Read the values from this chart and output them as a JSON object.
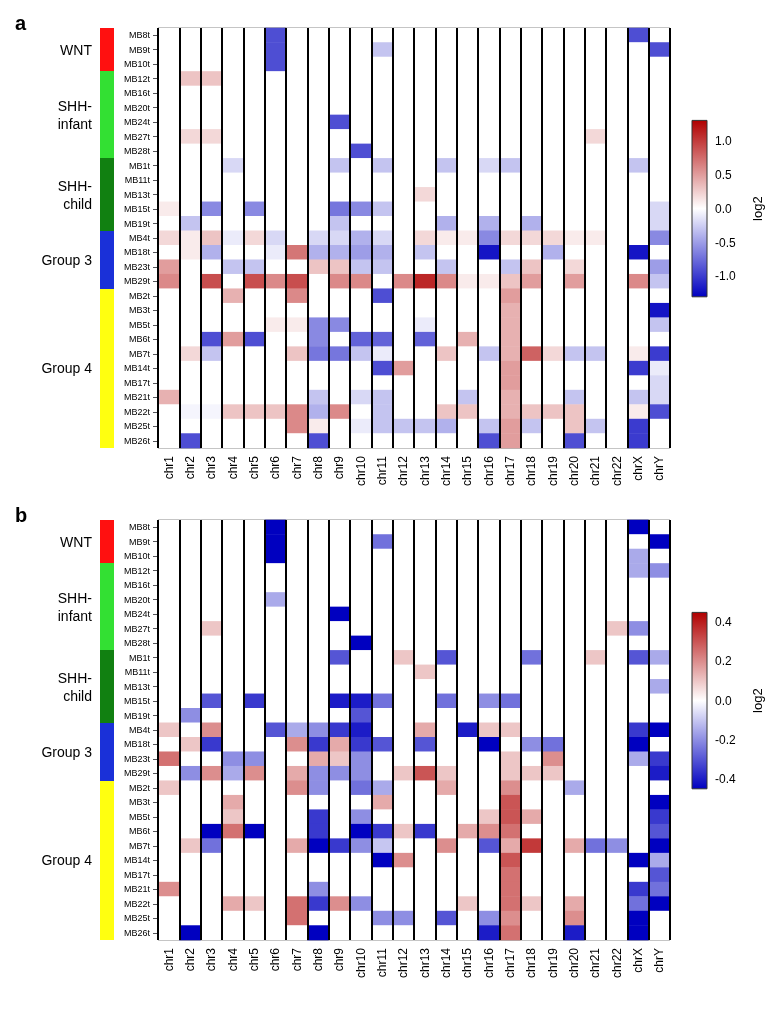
{
  "chart_data": [
    {
      "type": "heatmap",
      "title": "a",
      "clabel": "log2",
      "categories": [
        "chr1",
        "chr2",
        "chr3",
        "chr4",
        "chr5",
        "chr6",
        "chr7",
        "chr8",
        "chr9",
        "chr10",
        "chr11",
        "chr12",
        "chr13",
        "chr14",
        "chr15",
        "chr16",
        "chr17",
        "chr18",
        "chr19",
        "chr20",
        "chr21",
        "chr22",
        "chrX",
        "chrY"
      ],
      "y_categories": [
        "MB8t",
        "MB9t",
        "MB10t",
        "MB12t",
        "MB16t",
        "MB20t",
        "MB24t",
        "MB27t",
        "MB28t",
        "MB1t",
        "MB11t",
        "MB13t",
        "MB15t",
        "MB19t",
        "MB4t",
        "MB18t",
        "MB23t",
        "MB29t",
        "MB2t",
        "MB3t",
        "MB5t",
        "MB6t",
        "MB7t",
        "MB14t",
        "MB17t",
        "MB21t",
        "MB22t",
        "MB25t",
        "MB26t"
      ],
      "cells": [
        [
          0,
          0,
          0,
          0,
          0,
          -0.9,
          0,
          0,
          0,
          0,
          0,
          0,
          0,
          0,
          0,
          0,
          0,
          0,
          0,
          0,
          0,
          0,
          -0.9,
          0
        ],
        [
          0,
          0,
          0,
          0,
          0,
          -0.9,
          0,
          0,
          0,
          0,
          -0.3,
          0,
          0,
          0,
          0,
          0,
          0,
          0,
          0,
          0,
          0,
          0,
          0,
          -0.9
        ],
        [
          0,
          0,
          0,
          0,
          0,
          -0.9,
          0,
          0,
          0,
          0,
          0,
          0,
          0,
          0,
          0,
          0,
          0,
          0,
          0,
          0,
          0,
          0,
          0,
          0
        ],
        [
          0,
          0.3,
          0.3,
          0,
          0,
          0,
          0,
          0,
          0,
          0,
          0,
          0,
          0,
          0,
          0,
          0,
          0,
          0,
          0,
          0,
          0,
          0,
          0,
          0
        ],
        [
          0,
          0,
          0,
          0,
          0,
          0,
          0,
          0,
          0,
          0,
          0,
          0,
          0,
          0,
          0,
          0,
          0,
          0,
          0,
          0,
          0,
          0,
          0,
          0
        ],
        [
          0,
          0,
          0,
          0,
          0,
          0,
          0,
          0,
          0,
          0,
          0,
          0,
          0,
          0,
          0,
          0,
          0,
          0,
          0,
          0,
          0,
          0,
          0,
          0
        ],
        [
          0,
          0,
          0,
          0,
          0,
          0,
          0,
          0,
          -0.9,
          0,
          0,
          0,
          0,
          0,
          0,
          0,
          0,
          0,
          0,
          0,
          0,
          0,
          0,
          0
        ],
        [
          0,
          0.2,
          0.2,
          0,
          0,
          0,
          0,
          0,
          0,
          0,
          0,
          0,
          0,
          0,
          0,
          0,
          0,
          0,
          0,
          0,
          0.2,
          0,
          0,
          0
        ],
        [
          0,
          0,
          0,
          0,
          0,
          0,
          0,
          0,
          0,
          -0.9,
          0,
          0,
          0,
          0,
          0,
          0,
          0,
          0,
          0,
          0,
          0,
          0,
          0,
          0
        ],
        [
          0,
          0,
          0,
          -0.2,
          0,
          0,
          0,
          0,
          -0.3,
          0,
          -0.3,
          0,
          0,
          -0.3,
          0,
          -0.2,
          -0.3,
          0,
          0,
          0,
          0,
          0,
          -0.3,
          0
        ],
        [
          0,
          0,
          0,
          0,
          0,
          0,
          0,
          0,
          0,
          0,
          0,
          0,
          0,
          0,
          0,
          0,
          0,
          0,
          0,
          0,
          0,
          0,
          0,
          0
        ],
        [
          0,
          0,
          0,
          0,
          0,
          0,
          0,
          0,
          0,
          0,
          0,
          0,
          0.2,
          0,
          0,
          0,
          0,
          0,
          0,
          0,
          0,
          0,
          0,
          0
        ],
        [
          0.1,
          0,
          -0.6,
          0,
          -0.6,
          0,
          0,
          0,
          -0.7,
          -0.6,
          -0.3,
          0,
          0,
          0,
          0,
          0,
          0,
          0,
          0,
          0,
          0,
          0,
          0,
          -0.2
        ],
        [
          0,
          -0.3,
          0,
          0,
          0,
          0,
          0,
          0,
          -0.3,
          0,
          0,
          0,
          0,
          -0.4,
          0,
          -0.4,
          0,
          -0.4,
          0,
          0,
          0,
          0,
          0,
          -0.2
        ],
        [
          0.2,
          0.1,
          0.3,
          -0.1,
          0.2,
          -0.2,
          0,
          -0.2,
          -0.2,
          -0.4,
          -0.2,
          0,
          0.2,
          0.1,
          0.1,
          -0.6,
          0.2,
          0.2,
          0.2,
          0.1,
          0.1,
          0,
          0,
          -0.6
        ],
        [
          0,
          0.1,
          -0.4,
          0,
          0,
          -0.1,
          0.7,
          -0.4,
          -0.4,
          -0.5,
          -0.4,
          0,
          -0.3,
          0,
          0,
          -1.2,
          0,
          0,
          -0.4,
          0,
          0,
          0,
          -1.2,
          0
        ],
        [
          0.5,
          0,
          0,
          -0.3,
          -0.3,
          0,
          0,
          0.3,
          0.3,
          -0.3,
          -0.3,
          0,
          0,
          -0.3,
          0,
          0,
          -0.3,
          0.3,
          0,
          0.2,
          0,
          0,
          0,
          -0.5
        ],
        [
          0.6,
          0,
          0.9,
          0,
          0.9,
          0.6,
          0.9,
          0,
          0.6,
          0.6,
          0,
          0.6,
          1.1,
          0.6,
          0.1,
          0.1,
          0.3,
          0.5,
          0,
          0.5,
          0,
          0,
          0.6,
          -0.3
        ],
        [
          0,
          0,
          0,
          0.4,
          0,
          0,
          0.6,
          0,
          0,
          0,
          -0.9,
          0,
          0,
          0,
          0,
          0,
          0.5,
          0,
          0,
          0,
          0,
          0,
          0,
          0
        ],
        [
          0,
          0,
          0,
          0,
          0,
          0,
          0,
          0,
          0,
          0,
          0,
          0,
          0,
          0,
          0,
          0,
          0.4,
          0,
          0,
          0,
          0,
          0,
          0,
          -1.2
        ],
        [
          0,
          0,
          0,
          0,
          0,
          0.1,
          0.1,
          -0.6,
          -0.6,
          0,
          0,
          0,
          -0.1,
          0,
          0,
          0,
          0.4,
          0,
          0,
          0,
          0,
          0,
          0,
          -0.3
        ],
        [
          0,
          0,
          -0.9,
          0.5,
          -0.9,
          0,
          0,
          -0.6,
          0,
          -0.8,
          -0.8,
          0,
          -0.8,
          0,
          0.4,
          0,
          0.4,
          0,
          0,
          0,
          0,
          0,
          0,
          0
        ],
        [
          0,
          0.2,
          -0.3,
          0,
          0,
          0,
          0.3,
          -0.7,
          -0.7,
          -0.3,
          -0.1,
          0,
          0,
          0.3,
          0,
          -0.3,
          0.4,
          0.8,
          0.2,
          -0.3,
          -0.3,
          0,
          0.1,
          -1.0
        ],
        [
          0,
          0,
          0,
          0,
          0,
          0,
          0,
          0,
          0,
          0,
          -0.9,
          0.5,
          0,
          0,
          0,
          0,
          0.5,
          0,
          0,
          0,
          0,
          0,
          -1.0,
          -0.1
        ],
        [
          0,
          0,
          0,
          0,
          0,
          0,
          0,
          0,
          0,
          0,
          0,
          0,
          0,
          0,
          0,
          0,
          0.5,
          0,
          0,
          0,
          0,
          0,
          0,
          -0.2
        ],
        [
          0.4,
          0,
          0,
          0,
          0,
          0,
          0,
          -0.3,
          0,
          -0.2,
          -0.3,
          0,
          0,
          0,
          -0.3,
          0,
          0.4,
          0,
          0,
          -0.3,
          0,
          0,
          -0.3,
          -0.2
        ],
        [
          0,
          -0.05,
          -0.05,
          0.3,
          0.3,
          0.3,
          0.6,
          -0.4,
          0.6,
          0,
          -0.3,
          0,
          0,
          0.3,
          0.3,
          0,
          0.4,
          0.3,
          0.3,
          0.3,
          0,
          0,
          0.1,
          -0.9
        ],
        [
          0,
          0,
          0,
          0,
          0,
          0,
          0.6,
          0.1,
          0,
          -0.1,
          -0.3,
          -0.3,
          -0.3,
          -0.4,
          0,
          -0.3,
          0.5,
          -0.3,
          0,
          0.3,
          -0.3,
          0,
          -1.0,
          0
        ],
        [
          0,
          -0.9,
          0,
          0,
          0,
          0,
          0,
          -0.9,
          0,
          0,
          0,
          0,
          0,
          0,
          0,
          -0.9,
          0.5,
          0,
          0,
          -0.9,
          0,
          0,
          -1.0,
          0
        ]
      ],
      "clim": [
        -1.3,
        1.3
      ],
      "cticks": [
        {
          "value": -1.0,
          "label": "-1.0"
        },
        {
          "value": -0.5,
          "label": "-0.5"
        },
        {
          "value": 0.0,
          "label": "0.0"
        },
        {
          "value": 0.5,
          "label": "0.5"
        },
        {
          "value": 1.0,
          "label": "1.0"
        }
      ],
      "annotations": [
        "WNT",
        "SHH-infant",
        "SHH-child",
        "Group 3",
        "Group 4"
      ]
    },
    {
      "type": "heatmap",
      "title": "b",
      "clabel": "log2",
      "categories": [
        "chr1",
        "chr2",
        "chr3",
        "chr4",
        "chr5",
        "chr6",
        "chr7",
        "chr8",
        "chr9",
        "chr10",
        "chr11",
        "chr12",
        "chr13",
        "chr14",
        "chr15",
        "chr16",
        "chr17",
        "chr18",
        "chr19",
        "chr20",
        "chr21",
        "chr22",
        "chrX",
        "chrY"
      ],
      "y_categories": [
        "MB8t",
        "MB9t",
        "MB10t",
        "MB12t",
        "MB16t",
        "MB20t",
        "MB24t",
        "MB27t",
        "MB28t",
        "MB1t",
        "MB11t",
        "MB13t",
        "MB15t",
        "MB19t",
        "MB4t",
        "MB18t",
        "MB23t",
        "MB29t",
        "MB2t",
        "MB3t",
        "MB5t",
        "MB6t",
        "MB7t",
        "MB14t",
        "MB17t",
        "MB21t",
        "MB22t",
        "MB25t",
        "MB26t"
      ],
      "cells": [
        [
          0,
          0,
          0,
          0,
          0,
          -0.45,
          0,
          0,
          0,
          0,
          0,
          0,
          0,
          0,
          0,
          0,
          0,
          0,
          0,
          0,
          0,
          0,
          -0.45,
          0
        ],
        [
          0,
          0,
          0,
          0,
          0,
          -0.45,
          0,
          0,
          0,
          0,
          -0.25,
          0,
          0,
          0,
          0,
          0,
          0,
          0,
          0,
          0,
          0,
          0,
          0,
          -0.45
        ],
        [
          0,
          0,
          0,
          0,
          0,
          -0.45,
          0,
          0,
          0,
          0,
          0,
          0,
          0,
          0,
          0,
          0,
          0,
          0,
          0,
          0,
          0,
          0,
          -0.15,
          0
        ],
        [
          0,
          0,
          0,
          0,
          0,
          0,
          0,
          0,
          0,
          0,
          0,
          0,
          0,
          0,
          0,
          0,
          0,
          0,
          0,
          0,
          0,
          0,
          -0.15,
          -0.2
        ],
        [
          0,
          0,
          0,
          0,
          0,
          0,
          0,
          0,
          0,
          0,
          0,
          0,
          0,
          0,
          0,
          0,
          0,
          0,
          0,
          0,
          0,
          0,
          0,
          0
        ],
        [
          0,
          0,
          0,
          0,
          0,
          -0.15,
          0,
          0,
          0,
          0,
          0,
          0,
          0,
          0,
          0,
          0,
          0,
          0,
          0,
          0,
          0,
          0,
          0,
          0
        ],
        [
          0,
          0,
          0,
          0,
          0,
          0,
          0,
          0,
          -0.45,
          0,
          0,
          0,
          0,
          0,
          0,
          0,
          0,
          0,
          0,
          0,
          0,
          0,
          0,
          0
        ],
        [
          0,
          0,
          0.1,
          0,
          0,
          0,
          0,
          0,
          0,
          0,
          0,
          0,
          0,
          0,
          0,
          0,
          0,
          0,
          0,
          0,
          0,
          0.1,
          -0.2,
          0
        ],
        [
          0,
          0,
          0,
          0,
          0,
          0,
          0,
          0,
          0,
          -0.45,
          0,
          0,
          0,
          0,
          0,
          0,
          0,
          0,
          0,
          0,
          0,
          0,
          0,
          0
        ],
        [
          0,
          0,
          0,
          0,
          0,
          0,
          0,
          0,
          -0.3,
          0,
          0,
          0.1,
          0,
          -0.3,
          0,
          0,
          0,
          -0.25,
          0,
          0,
          0.1,
          0,
          -0.3,
          -0.15
        ],
        [
          0,
          0,
          0,
          0,
          0,
          0,
          0,
          0,
          0,
          0,
          0,
          0,
          0.1,
          0,
          0,
          0,
          0,
          0,
          0,
          0,
          0,
          0,
          0,
          0
        ],
        [
          0,
          0,
          0,
          0,
          0,
          0,
          0,
          0,
          0,
          0,
          0,
          0,
          0,
          0,
          0,
          0,
          0,
          0,
          0,
          0,
          0,
          0,
          0,
          -0.15
        ],
        [
          0,
          0,
          -0.3,
          0,
          -0.35,
          0,
          0,
          0,
          -0.4,
          -0.4,
          -0.25,
          0,
          0,
          -0.25,
          0,
          -0.2,
          -0.25,
          0,
          0,
          0,
          0,
          0,
          0,
          0
        ],
        [
          0,
          -0.2,
          0,
          0,
          0,
          0,
          0,
          0,
          0,
          -0.3,
          0,
          0,
          0,
          0,
          0,
          0,
          0,
          0,
          0,
          0,
          0,
          0,
          0,
          0
        ],
        [
          0.1,
          0,
          0.2,
          0,
          0,
          -0.3,
          -0.15,
          -0.2,
          -0.35,
          -0.4,
          0,
          0,
          0.15,
          0,
          -0.4,
          0.1,
          0.1,
          0,
          0,
          0,
          0,
          0,
          -0.35,
          -0.45
        ],
        [
          0,
          0.1,
          -0.35,
          0,
          0,
          0,
          0.2,
          -0.35,
          0.15,
          -0.35,
          -0.3,
          0,
          -0.3,
          0,
          0,
          -0.45,
          0,
          -0.2,
          -0.25,
          0,
          0,
          0,
          -0.45,
          0
        ],
        [
          0.25,
          0,
          0,
          -0.2,
          -0.2,
          0,
          0,
          0.15,
          0.1,
          -0.2,
          0,
          0,
          0,
          0,
          0,
          0,
          0.1,
          0,
          0.2,
          0,
          0,
          0,
          -0.15,
          -0.35
        ],
        [
          0,
          -0.2,
          0.2,
          -0.15,
          0.2,
          0,
          0.15,
          -0.2,
          -0.2,
          -0.2,
          0,
          0.1,
          0.3,
          0.1,
          0,
          0,
          0.1,
          0.1,
          0.1,
          0,
          0,
          0,
          0,
          -0.4
        ],
        [
          0.1,
          0,
          0,
          0,
          0,
          0,
          0.2,
          -0.2,
          0,
          -0.25,
          -0.15,
          0,
          0,
          0.15,
          0,
          0,
          0.2,
          0,
          0,
          -0.15,
          0,
          0,
          0,
          0
        ],
        [
          0,
          0,
          0,
          0.15,
          0,
          0,
          0,
          0,
          0,
          0,
          0.15,
          0,
          0,
          0,
          0,
          0,
          0.3,
          0,
          0,
          0,
          0,
          0,
          0,
          -0.45
        ],
        [
          0,
          0,
          0,
          0.1,
          0,
          0,
          0,
          -0.35,
          0,
          -0.2,
          0,
          0,
          0,
          0,
          0,
          0.1,
          0.3,
          0.15,
          0,
          0,
          0,
          0,
          0,
          -0.35
        ],
        [
          0,
          0,
          -0.45,
          0.25,
          -0.45,
          0,
          0,
          -0.35,
          0,
          -0.45,
          -0.35,
          0.1,
          -0.35,
          0,
          0.15,
          0.2,
          0.25,
          0,
          0,
          0,
          0,
          0,
          0,
          -0.3
        ],
        [
          0,
          0.1,
          -0.25,
          0,
          0,
          0,
          0.15,
          -0.45,
          -0.35,
          -0.2,
          -0.1,
          0,
          0,
          0.2,
          0,
          -0.3,
          0.15,
          0.35,
          0,
          0.15,
          -0.25,
          -0.2,
          0,
          -0.45
        ],
        [
          0,
          0,
          0,
          0,
          0,
          0,
          0,
          0,
          0,
          0,
          -0.45,
          0.2,
          0,
          0,
          0,
          0,
          0.3,
          0,
          0,
          0,
          0,
          0,
          -0.45,
          -0.15
        ],
        [
          0,
          0,
          0,
          0,
          0,
          0,
          0,
          0,
          0,
          0,
          0,
          0,
          0,
          0,
          0,
          0,
          0.25,
          0,
          0,
          0,
          0,
          0,
          0,
          -0.3
        ],
        [
          0.2,
          0,
          0,
          0,
          0,
          0,
          0,
          -0.2,
          0,
          0,
          0,
          0,
          0,
          0,
          0,
          0,
          0.25,
          0,
          0,
          0,
          0,
          0,
          -0.35,
          -0.25
        ],
        [
          0,
          0,
          0,
          0.15,
          0.1,
          0,
          0.25,
          -0.35,
          0.2,
          -0.2,
          0,
          0,
          0,
          0,
          0.1,
          0,
          0.25,
          0.1,
          0,
          0.15,
          0,
          0,
          -0.25,
          -0.45
        ],
        [
          0,
          0,
          0,
          0,
          0,
          0,
          0.25,
          0,
          0,
          0,
          -0.2,
          -0.2,
          0,
          -0.3,
          0,
          -0.2,
          0.2,
          0,
          0,
          0.2,
          0,
          0,
          -0.45,
          0
        ],
        [
          0,
          -0.45,
          0,
          0,
          0,
          0,
          0,
          -0.45,
          0,
          0,
          0,
          0,
          0,
          0,
          0,
          -0.4,
          0.25,
          0,
          0,
          -0.4,
          0,
          0,
          -0.45,
          0
        ]
      ],
      "clim": [
        -0.45,
        0.45
      ],
      "cticks": [
        {
          "value": -0.4,
          "label": "-0.4"
        },
        {
          "value": -0.2,
          "label": "-0.2"
        },
        {
          "value": 0.0,
          "label": "0.0"
        },
        {
          "value": 0.2,
          "label": "0.2"
        },
        {
          "value": 0.4,
          "label": "0.4"
        }
      ],
      "annotations": [
        "WNT",
        "SHH-infant",
        "SHH-child",
        "Group 3",
        "Group 4"
      ]
    }
  ]
}
